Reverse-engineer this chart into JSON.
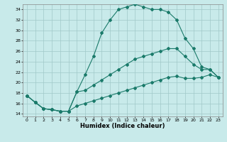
{
  "title": "",
  "xlabel": "Humidex (Indice chaleur)",
  "background_color": "#c8eaea",
  "grid_color": "#a0c8c8",
  "line_color": "#1a7a6a",
  "xlim": [
    -0.5,
    23.5
  ],
  "ylim": [
    13.5,
    35.0
  ],
  "xticks": [
    0,
    1,
    2,
    3,
    4,
    5,
    6,
    7,
    8,
    9,
    10,
    11,
    12,
    13,
    14,
    15,
    16,
    17,
    18,
    19,
    20,
    21,
    22,
    23
  ],
  "yticks": [
    14,
    16,
    18,
    20,
    22,
    24,
    26,
    28,
    30,
    32,
    34
  ],
  "line1_x": [
    0,
    1,
    2,
    3,
    4,
    5,
    6,
    7,
    8,
    9,
    10,
    11,
    12,
    13,
    14,
    15,
    16,
    17,
    18,
    19,
    20,
    21,
    22,
    23
  ],
  "line1_y": [
    17.5,
    16.2,
    15.0,
    14.8,
    14.5,
    14.5,
    18.2,
    21.5,
    25.0,
    29.5,
    32.0,
    34.0,
    34.5,
    35.0,
    34.5,
    34.0,
    34.0,
    33.5,
    32.0,
    28.5,
    26.5,
    23.0,
    22.5,
    21.0
  ],
  "line2_x": [
    0,
    1,
    2,
    3,
    4,
    5,
    6,
    7,
    8,
    9,
    10,
    11,
    12,
    13,
    14,
    15,
    16,
    17,
    18,
    19,
    20,
    21,
    22,
    23
  ],
  "line2_y": [
    17.5,
    16.2,
    15.0,
    14.8,
    14.5,
    14.5,
    18.2,
    18.5,
    19.5,
    20.5,
    21.5,
    22.5,
    23.5,
    24.5,
    25.0,
    25.5,
    26.0,
    26.5,
    26.5,
    25.0,
    23.5,
    22.5,
    22.5,
    21.0
  ],
  "line3_x": [
    0,
    1,
    2,
    3,
    4,
    5,
    6,
    7,
    8,
    9,
    10,
    11,
    12,
    13,
    14,
    15,
    16,
    17,
    18,
    19,
    20,
    21,
    22,
    23
  ],
  "line3_y": [
    17.5,
    16.2,
    15.0,
    14.8,
    14.5,
    14.5,
    15.5,
    16.0,
    16.5,
    17.0,
    17.5,
    18.0,
    18.5,
    19.0,
    19.5,
    20.0,
    20.5,
    21.0,
    21.2,
    20.8,
    20.8,
    21.0,
    21.5,
    21.0
  ]
}
